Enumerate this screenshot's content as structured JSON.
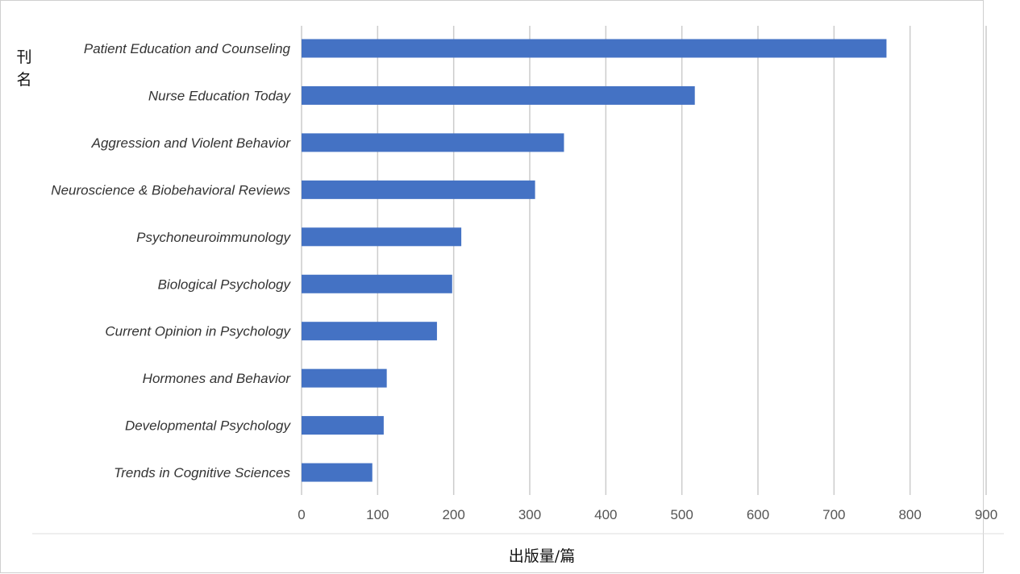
{
  "chart_data": {
    "type": "bar",
    "orientation": "horizontal",
    "categories": [
      "Patient Education and Counseling",
      "Nurse Education Today",
      "Aggression and Violent Behavior",
      "Neuroscience & Biobehavioral Reviews",
      "Psychoneuroimmunology",
      "Biological Psychology",
      "Current Opinion in Psychology",
      "Hormones and Behavior",
      "Developmental Psychology",
      "Trends in Cognitive Sciences"
    ],
    "values": [
      769,
      517,
      345,
      307,
      210,
      198,
      178,
      112,
      108,
      93
    ],
    "xlabel": "出版量/篇",
    "ylabel": "刊名",
    "xlim": [
      0,
      900
    ],
    "xticks": [
      0,
      100,
      200,
      300,
      400,
      500,
      600,
      700,
      800,
      900
    ],
    "grid": "vertical",
    "bar_color": "#4472C4"
  }
}
